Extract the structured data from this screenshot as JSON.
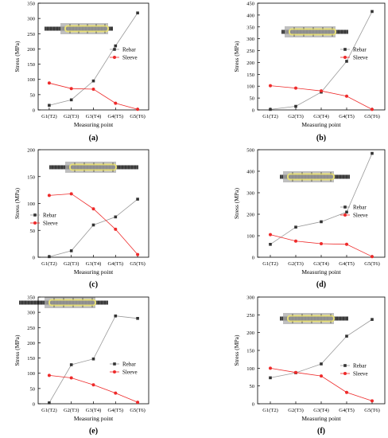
{
  "colors": {
    "rebar": "#333333",
    "sleeve": "#ee2a2a",
    "connector": "#aaaaaa"
  },
  "chart_data": [
    {
      "type": "line",
      "panel_label": "(a)",
      "xlabel": "Measuring point",
      "ylabel": "Stress (MPa)",
      "categories": [
        "G1(T2)",
        "G2(T3)",
        "G3(T4)",
        "G4(T5)",
        "G5(T6)"
      ],
      "ylim": [
        0,
        350
      ],
      "yticks": [
        0,
        50,
        100,
        150,
        200,
        250,
        300,
        350
      ],
      "legend_position": "right-middle",
      "series": [
        {
          "name": "Rebar",
          "values": [
            15,
            33,
            95,
            210,
            318
          ]
        },
        {
          "name": "Sleeve",
          "values": [
            88,
            70,
            68,
            22,
            2
          ]
        }
      ]
    },
    {
      "type": "line",
      "panel_label": "(b)",
      "xlabel": "Measuring point",
      "ylabel": "Stress (MPa)",
      "categories": [
        "G1(T2)",
        "G2(T3)",
        "G3(T4)",
        "G4(T5)",
        "G5(T6)"
      ],
      "ylim": [
        0,
        450
      ],
      "yticks": [
        0,
        50,
        100,
        150,
        200,
        250,
        300,
        350,
        400,
        450
      ],
      "legend_position": "right-middle",
      "series": [
        {
          "name": "Rebar",
          "values": [
            2,
            15,
            75,
            205,
            415
          ]
        },
        {
          "name": "Sleeve",
          "values": [
            102,
            92,
            80,
            58,
            2
          ]
        }
      ]
    },
    {
      "type": "line",
      "panel_label": "(c)",
      "xlabel": "Measuring point",
      "ylabel": "Stress (MPa)",
      "categories": [
        "G1(T2)",
        "G2(T3)",
        "G3(T4)",
        "G4(T5)",
        "G5(T6)"
      ],
      "ylim": [
        0,
        200
      ],
      "yticks": [
        0,
        50,
        100,
        150,
        200
      ],
      "legend_position": "left-middle",
      "series": [
        {
          "name": "Rebar",
          "values": [
            1,
            12,
            60,
            75,
            108
          ]
        },
        {
          "name": "Sleeve",
          "values": [
            115,
            118,
            90,
            52,
            5
          ]
        }
      ]
    },
    {
      "type": "line",
      "panel_label": "(d)",
      "xlabel": "Measuring point",
      "ylabel": "Stress (MPa)",
      "categories": [
        "G1(T2)",
        "G2(T3)",
        "G3(T4)",
        "G4(T5)",
        "G5(T6)"
      ],
      "ylim": [
        0,
        500
      ],
      "yticks": [
        0,
        100,
        200,
        300,
        400,
        500
      ],
      "legend_position": "right-middle",
      "series": [
        {
          "name": "Rebar",
          "values": [
            60,
            140,
            165,
            210,
            483
          ]
        },
        {
          "name": "Sleeve",
          "values": [
            105,
            75,
            63,
            60,
            3
          ]
        }
      ]
    },
    {
      "type": "line",
      "panel_label": "(e)",
      "xlabel": "Measuring point",
      "ylabel": "Stress (MPa)",
      "categories": [
        "G1(T2)",
        "G2(T3)",
        "G3(T4)",
        "G4(T5)",
        "G5(T6)"
      ],
      "ylim": [
        0,
        350
      ],
      "yticks": [
        0,
        50,
        100,
        150,
        200,
        250,
        300,
        350
      ],
      "legend_position": "right-middle",
      "series": [
        {
          "name": "Rebar",
          "values": [
            3,
            128,
            147,
            288,
            280
          ]
        },
        {
          "name": "Sleeve",
          "values": [
            93,
            85,
            62,
            35,
            5
          ]
        }
      ]
    },
    {
      "type": "line",
      "panel_label": "(f)",
      "xlabel": "Measuring point",
      "ylabel": "Stress (MPa)",
      "categories": [
        "G1(T2)",
        "G2(T3)",
        "G3(T4)",
        "G4(T5)",
        "G5(T6)"
      ],
      "ylim": [
        0,
        300
      ],
      "yticks": [
        0,
        50,
        100,
        150,
        200,
        250,
        300
      ],
      "legend_position": "right-middle",
      "series": [
        {
          "name": "Rebar",
          "values": [
            73,
            87,
            112,
            190,
            237
          ]
        },
        {
          "name": "Sleeve",
          "values": [
            100,
            88,
            78,
            32,
            8
          ]
        }
      ]
    }
  ]
}
